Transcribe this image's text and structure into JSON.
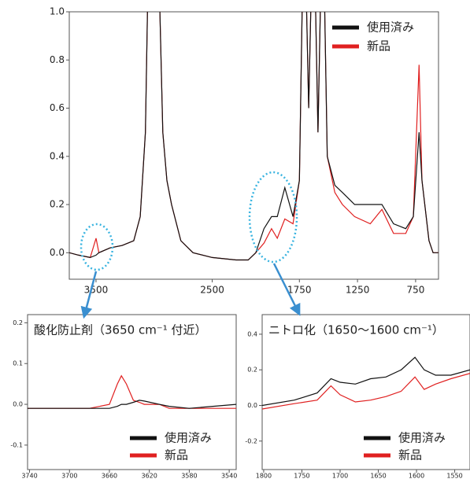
{
  "chart_data": [
    {
      "type": "line",
      "x": [
        3730,
        3650,
        3550,
        3500,
        3475,
        3380,
        3275,
        3175,
        3120,
        3075,
        3040,
        2985,
        2950,
        2925,
        2890,
        2850,
        2770,
        2665,
        2500,
        2295,
        2190,
        2125,
        2055,
        1990,
        1940,
        1875,
        1805,
        1750,
        1710,
        1670,
        1630,
        1590,
        1550,
        1510,
        1445,
        1380,
        1275,
        1140,
        1040,
        940,
        835,
        770,
        720,
        695,
        635,
        600,
        555
      ],
      "series": [
        {
          "name": "使用済み",
          "color": "#111111",
          "values": [
            0.0,
            -0.01,
            -0.02,
            -0.01,
            0.0,
            0.02,
            0.03,
            0.05,
            0.15,
            0.5,
            1.5,
            1.5,
            1.0,
            0.5,
            0.3,
            0.2,
            0.05,
            0.0,
            -0.02,
            -0.03,
            -0.03,
            0.0,
            0.1,
            0.15,
            0.15,
            0.27,
            0.15,
            0.3,
            1.5,
            0.6,
            1.5,
            0.5,
            1.5,
            0.4,
            0.28,
            0.25,
            0.2,
            0.2,
            0.2,
            0.12,
            0.1,
            0.15,
            0.5,
            0.3,
            0.05,
            0.0,
            0.0
          ]
        },
        {
          "name": "新品",
          "color": "#e02020",
          "values": [
            0.0,
            -0.01,
            -0.02,
            0.06,
            0.0,
            0.02,
            0.03,
            0.05,
            0.15,
            0.5,
            1.5,
            1.5,
            1.0,
            0.5,
            0.3,
            0.2,
            0.05,
            0.0,
            -0.02,
            -0.03,
            -0.03,
            0.0,
            0.04,
            0.1,
            0.06,
            0.14,
            0.12,
            0.3,
            1.5,
            0.6,
            1.5,
            0.5,
            1.5,
            0.4,
            0.25,
            0.2,
            0.15,
            0.12,
            0.18,
            0.08,
            0.08,
            0.15,
            0.78,
            0.3,
            0.05,
            0.0,
            0.0
          ]
        }
      ],
      "xlim": [
        3730,
        553
      ],
      "xticks": [
        3500,
        2500,
        1750,
        1250,
        750
      ],
      "ylim": [
        -0.11,
        1.0
      ],
      "yticks": [
        {
          "value": 0,
          "label": "0.0"
        },
        0.2,
        0.4,
        0.6,
        0.8,
        {
          "value": 1,
          "label": "1.0"
        }
      ],
      "legend": "upper right"
    },
    {
      "type": "line",
      "title": "酸化防止剤（3650 cm⁻¹ 付近）",
      "x": [
        3742,
        3680,
        3660,
        3652,
        3648,
        3643,
        3636,
        3630,
        3625,
        3610,
        3600,
        3580,
        3533
      ],
      "series": [
        {
          "name": "使用済み",
          "color": "#111111",
          "values": [
            -0.01,
            -0.01,
            -0.01,
            -0.005,
            0.0,
            0.0,
            0.005,
            0.01,
            0.008,
            0.0,
            -0.005,
            -0.01,
            0.0
          ]
        },
        {
          "name": "新品",
          "color": "#e02020",
          "values": [
            -0.01,
            -0.01,
            0.0,
            0.05,
            0.07,
            0.05,
            0.01,
            0.005,
            0.0,
            0.0,
            -0.01,
            -0.01,
            -0.01
          ]
        }
      ],
      "xlim": [
        3742,
        3533
      ],
      "xticks": [
        3740,
        3700,
        3660,
        3620,
        3580,
        3540
      ],
      "ylim": [
        -0.16,
        0.22
      ],
      "yticks": [
        -0.1,
        {
          "value": 0,
          "label": "0.0"
        },
        0.1,
        0.2
      ],
      "legend": "lower right"
    },
    {
      "type": "line",
      "title": "ニトロ化（1650～1600 cm⁻¹）",
      "x": [
        1802,
        1760,
        1730,
        1712,
        1700,
        1680,
        1660,
        1640,
        1620,
        1602,
        1590,
        1575,
        1555,
        1530
      ],
      "series": [
        {
          "name": "使用済み",
          "color": "#111111",
          "values": [
            0.0,
            0.03,
            0.07,
            0.15,
            0.13,
            0.12,
            0.15,
            0.16,
            0.2,
            0.27,
            0.2,
            0.17,
            0.17,
            0.2
          ]
        },
        {
          "name": "新品",
          "color": "#e02020",
          "values": [
            -0.02,
            0.01,
            0.03,
            0.11,
            0.06,
            0.02,
            0.03,
            0.05,
            0.08,
            0.16,
            0.09,
            0.12,
            0.15,
            0.18
          ]
        }
      ],
      "xlim": [
        1802,
        1530
      ],
      "xticks": [
        1800,
        1750,
        1700,
        1650,
        1600,
        1550
      ],
      "ylim": [
        -0.36,
        0.51
      ],
      "yticks": [
        -0.2,
        {
          "value": 0,
          "label": "0.0"
        },
        0.2,
        0.4
      ],
      "legend": "lower right"
    }
  ]
}
